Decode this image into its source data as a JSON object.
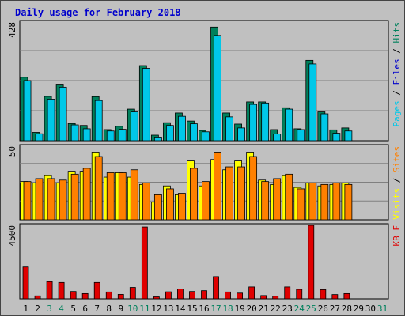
{
  "title": "Daily usage for February 2018",
  "colors": {
    "background": "#c0c0c0",
    "title": "#0000cc",
    "hits": "#00805c",
    "files": "#00c8e8",
    "sites": "#ff8000",
    "visits": "#ffff00",
    "kbytes": "#e00000",
    "weekend_day": "#00805c",
    "weekday": "#000000",
    "gridline": "#808080"
  },
  "chart_data": [
    {
      "type": "bar",
      "panel": "pages-files-hits",
      "ymax_label": "428",
      "ylim": [
        0,
        428
      ],
      "grid": true,
      "legend": [
        {
          "name": "Pages",
          "color": "#00c8e8"
        },
        {
          "name": "Files",
          "color": "#0000cc"
        },
        {
          "name": "Hits",
          "color": "#00805c"
        }
      ],
      "categories": [
        "1",
        "2",
        "3",
        "4",
        "5",
        "6",
        "7",
        "8",
        "9",
        "10",
        "11",
        "12",
        "13",
        "14",
        "15",
        "16",
        "17",
        "18",
        "19",
        "20",
        "21",
        "22",
        "23",
        "24",
        "25",
        "26",
        "27",
        "28",
        "29",
        "30",
        "31"
      ],
      "series": [
        {
          "name": "Hits",
          "values": [
            229,
            30,
            160,
            204,
            62,
            55,
            159,
            40,
            52,
            114,
            271,
            20,
            65,
            100,
            71,
            37,
            410,
            100,
            60,
            140,
            140,
            40,
            119,
            43,
            290,
            104,
            39,
            46,
            null,
            null,
            null
          ]
        },
        {
          "name": "Files",
          "values": [
            217,
            25,
            150,
            193,
            57,
            43,
            145,
            35,
            41,
            104,
            261,
            13,
            55,
            88,
            61,
            32,
            380,
            86,
            46,
            131,
            136,
            24,
            114,
            40,
            277,
            97,
            27,
            35,
            null,
            null,
            null
          ]
        }
      ]
    },
    {
      "type": "bar",
      "panel": "visits-sites",
      "ymax_label": "50",
      "ylim": [
        0,
        50
      ],
      "grid": true,
      "legend": [
        {
          "name": "Visits",
          "color": "#ffff00"
        },
        {
          "name": "Sites",
          "color": "#ff8000"
        }
      ],
      "categories": [
        "1",
        "2",
        "3",
        "4",
        "5",
        "6",
        "7",
        "8",
        "9",
        "10",
        "11",
        "12",
        "13",
        "14",
        "15",
        "16",
        "17",
        "18",
        "19",
        "20",
        "21",
        "22",
        "23",
        "24",
        "25",
        "26",
        "27",
        "28",
        "29",
        "30",
        "31"
      ],
      "series": [
        {
          "name": "Visits",
          "values": [
            26,
            25,
            30,
            25,
            33,
            33,
            46,
            29,
            32,
            29,
            24,
            12,
            23,
            17,
            40,
            23,
            41,
            34,
            40,
            46,
            27,
            24,
            30,
            22,
            25,
            23,
            24,
            25,
            null,
            null,
            null
          ]
        },
        {
          "name": "Sites",
          "values": [
            26,
            28,
            28,
            27,
            31,
            35,
            43,
            32,
            32,
            34,
            25,
            17,
            21,
            18,
            35,
            26,
            46,
            36,
            36,
            43,
            26,
            28,
            31,
            21,
            25,
            24,
            25,
            24,
            null,
            null,
            null
          ]
        }
      ]
    },
    {
      "type": "bar",
      "panel": "kbytes",
      "ymax_label": "4500",
      "ylim": [
        0,
        4500
      ],
      "grid": false,
      "legend": [
        {
          "name": "KB F",
          "color": "#e00000"
        }
      ],
      "categories": [
        "1",
        "2",
        "3",
        "4",
        "5",
        "6",
        "7",
        "8",
        "9",
        "10",
        "11",
        "12",
        "13",
        "14",
        "15",
        "16",
        "17",
        "18",
        "19",
        "20",
        "21",
        "22",
        "23",
        "24",
        "25",
        "26",
        "27",
        "28",
        "29",
        "30",
        "31"
      ],
      "series": [
        {
          "name": "KB F",
          "values": [
            1950,
            180,
            1050,
            1000,
            450,
            320,
            1000,
            420,
            270,
            700,
            4400,
            120,
            430,
            600,
            450,
            500,
            1360,
            420,
            350,
            730,
            200,
            160,
            730,
            580,
            4500,
            560,
            260,
            320,
            null,
            null,
            null
          ]
        }
      ]
    }
  ],
  "x_axis_days": [
    "1",
    "2",
    "3",
    "4",
    "5",
    "6",
    "7",
    "8",
    "9",
    "10",
    "11",
    "12",
    "13",
    "14",
    "15",
    "16",
    "17",
    "18",
    "19",
    "20",
    "21",
    "22",
    "23",
    "24",
    "25",
    "26",
    "27",
    "28",
    "29",
    "30",
    "31"
  ],
  "weekend_days": [
    "3",
    "4",
    "10",
    "11",
    "17",
    "18",
    "24",
    "25",
    "31"
  ]
}
